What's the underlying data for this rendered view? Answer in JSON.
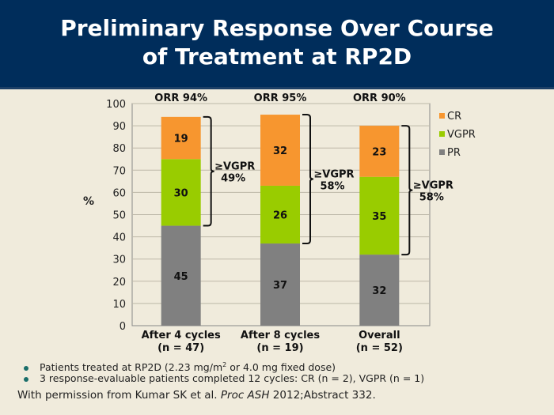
{
  "header": {
    "title_line1": "Preliminary Response Over Course",
    "title_line2": "of Treatment at RP2D"
  },
  "chart_data": {
    "type": "bar",
    "stacked": true,
    "categories": [
      "After 4 cycles\n(n = 47)",
      "After 8 cycles\n(n = 19)",
      "Overall\n(n = 52)"
    ],
    "category_lines": [
      [
        "After 4 cycles",
        "(n = 47)"
      ],
      [
        "After 8 cycles",
        "(n = 19)"
      ],
      [
        "Overall",
        "(n = 52)"
      ]
    ],
    "series": [
      {
        "name": "PR",
        "color": "#808080",
        "values": [
          45,
          37,
          32
        ]
      },
      {
        "name": "VGPR",
        "color": "#99cc00",
        "values": [
          30,
          26,
          35
        ]
      },
      {
        "name": "CR",
        "color": "#f7962f",
        "values": [
          19,
          32,
          23
        ]
      }
    ],
    "orr_labels": [
      "ORR 94%",
      "ORR 95%",
      "ORR 90%"
    ],
    "vgpr_brackets": [
      {
        "from": 45,
        "to": 94,
        "label1": "≥VGPR",
        "label2": "49%"
      },
      {
        "from": 37,
        "to": 95,
        "label1": "≥VGPR",
        "label2": "58%"
      },
      {
        "from": 32,
        "to": 90,
        "label1": "≥VGPR",
        "label2": "58%"
      }
    ],
    "ylabel": "%",
    "ylim": [
      0,
      100
    ],
    "yticks": [
      0,
      10,
      20,
      30,
      40,
      50,
      60,
      70,
      80,
      90,
      100
    ],
    "grid": true,
    "legend": {
      "position": "right",
      "entries": [
        "CR",
        "VGPR",
        "PR"
      ]
    }
  },
  "bullets": [
    {
      "text_before": "Patients treated at RP2D (2.23 mg/m",
      "sup": "2",
      "text_after": " or 4.0 mg fixed dose)"
    },
    {
      "text_before": "3 response-evaluable patients completed 12 cycles: CR (n = 2), VGPR (n = 1)",
      "sup": "",
      "text_after": ""
    }
  ],
  "credit": {
    "before": "With permission from Kumar SK et al. ",
    "italic": "Proc ASH",
    "after": " 2012;Abstract 332."
  }
}
